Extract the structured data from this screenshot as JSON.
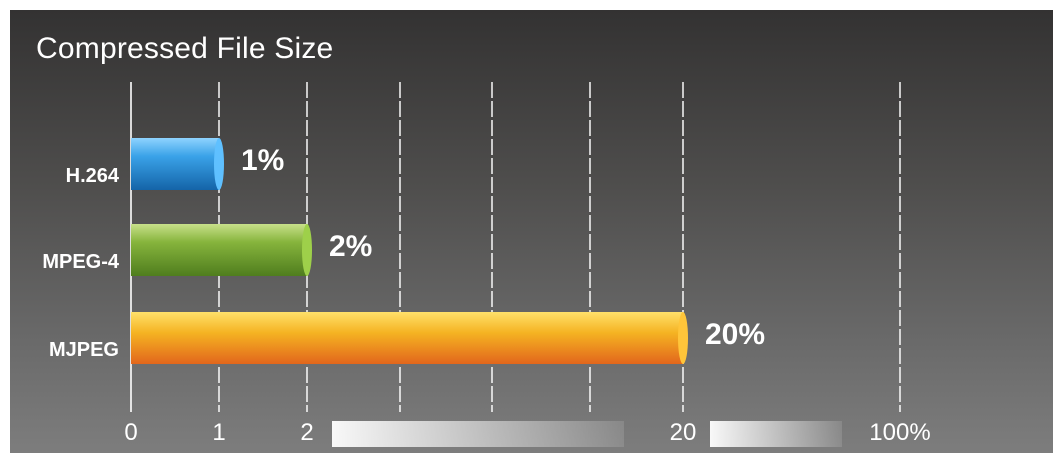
{
  "chart_data": {
    "type": "bar",
    "orientation": "horizontal",
    "title": "Compressed File Size",
    "categories": [
      "H.264",
      "MPEG-4",
      "MJPEG"
    ],
    "values": [
      1,
      2,
      20
    ],
    "value_labels": [
      "1%",
      "2%",
      "20%"
    ],
    "x_ticks": [
      "0",
      "1",
      "2",
      "20",
      "100%"
    ],
    "axis_scale": "broken",
    "grid": true,
    "bar_colors": [
      "#2a8fd6",
      "#7aaa32",
      "#f0a020"
    ]
  }
}
